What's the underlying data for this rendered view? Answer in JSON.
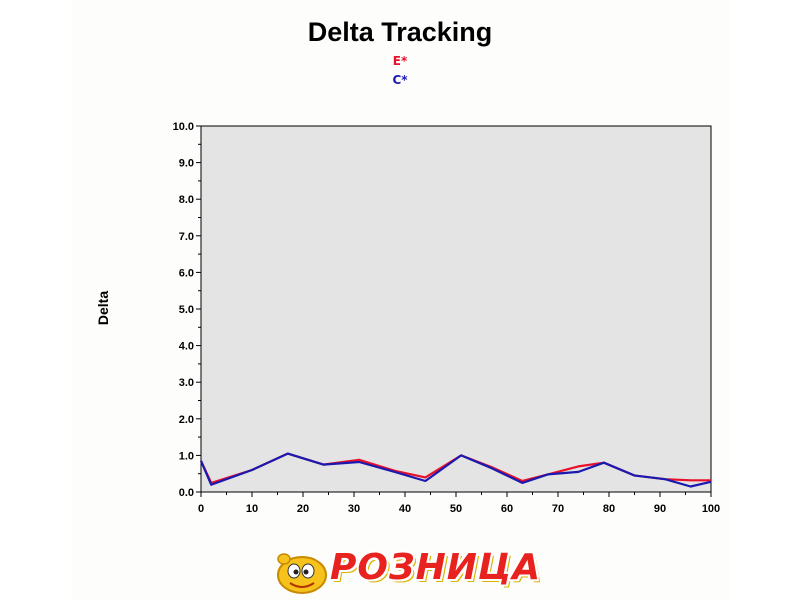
{
  "chart_data": {
    "type": "line",
    "title": "Delta Tracking",
    "ylabel": "Delta",
    "xlabel": "",
    "xlim": [
      0,
      100
    ],
    "ylim": [
      0,
      10
    ],
    "x_ticks": [
      "0",
      "10",
      "20",
      "30",
      "40",
      "50",
      "60",
      "70",
      "80",
      "90",
      "100"
    ],
    "y_ticks": [
      "0.0",
      "1.0",
      "2.0",
      "3.0",
      "4.0",
      "5.0",
      "6.0",
      "7.0",
      "8.0",
      "9.0",
      "10.0"
    ],
    "legend_position": "top-center",
    "plot_background": "#e4e4e4",
    "series": [
      {
        "name": "E*",
        "color": "#e8102a",
        "x": [
          0,
          2,
          10,
          17,
          24,
          31,
          38,
          44,
          51,
          57,
          63,
          68,
          74,
          79,
          85,
          91,
          96,
          100
        ],
        "y": [
          0.85,
          0.25,
          0.6,
          1.05,
          0.75,
          0.88,
          0.58,
          0.4,
          1.0,
          0.68,
          0.3,
          0.48,
          0.7,
          0.8,
          0.45,
          0.35,
          0.32,
          0.32
        ]
      },
      {
        "name": "C*",
        "color": "#1a1ab0",
        "x": [
          0,
          2,
          10,
          17,
          24,
          31,
          38,
          44,
          51,
          57,
          63,
          68,
          74,
          79,
          85,
          91,
          96,
          100
        ],
        "y": [
          0.85,
          0.2,
          0.6,
          1.05,
          0.75,
          0.82,
          0.55,
          0.3,
          1.0,
          0.65,
          0.25,
          0.48,
          0.55,
          0.8,
          0.45,
          0.35,
          0.15,
          0.28
        ]
      }
    ]
  },
  "logo": {
    "text": "РОЗНИЦА"
  }
}
